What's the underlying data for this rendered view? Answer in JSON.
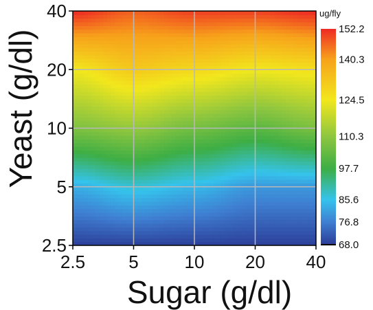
{
  "chart_data": {
    "type": "heatmap",
    "xlabel": "Sugar (g/dl)",
    "ylabel": "Yeast (g/dl)",
    "x_scale": "log2",
    "y_scale": "log2",
    "x_ticks": [
      2.5,
      5,
      10,
      20,
      40
    ],
    "y_ticks": [
      2.5,
      5,
      10,
      20,
      40
    ],
    "x_tick_labels": [
      "2.5",
      "5",
      "10",
      "20",
      "40"
    ],
    "y_tick_labels": [
      "2.5",
      "5",
      "10",
      "20",
      "40"
    ],
    "xlim": [
      2.5,
      40
    ],
    "ylim": [
      2.5,
      40
    ],
    "grid": true,
    "colorbar": {
      "title": "ug/fly",
      "range": [
        68.0,
        152.2
      ],
      "tick_values": [
        152.2,
        140.3,
        124.5,
        110.3,
        97.7,
        85.6,
        76.8,
        68.0
      ],
      "tick_labels": [
        "152.2",
        "140.3",
        "124.5",
        "110.3",
        "97.7",
        "85.6",
        "76.8",
        "68.0"
      ],
      "colors": [
        "#2b3c96",
        "#3f7fd2",
        "#35c3ec",
        "#3dae45",
        "#8ec63f",
        "#f2e71d",
        "#f7a21b",
        "#ee2a24"
      ],
      "color_stops": [
        68.0,
        76.8,
        85.6,
        97.7,
        110.3,
        124.5,
        140.3,
        152.2
      ]
    },
    "sugar_grid": [
      2.5,
      5,
      10,
      20,
      40
    ],
    "yeast_grid": [
      2.5,
      5,
      10,
      20,
      40
    ],
    "z_values": [
      [
        68.5,
        68.5,
        68.5,
        68.5,
        68.5
      ],
      [
        83.0,
        87.0,
        84.0,
        80.0,
        80.0
      ],
      [
        108.0,
        111.0,
        106.0,
        102.5,
        107.0
      ],
      [
        124.5,
        131.0,
        128.0,
        124.5,
        126.0
      ],
      [
        152.2,
        147.0,
        150.0,
        150.0,
        152.2
      ]
    ]
  }
}
